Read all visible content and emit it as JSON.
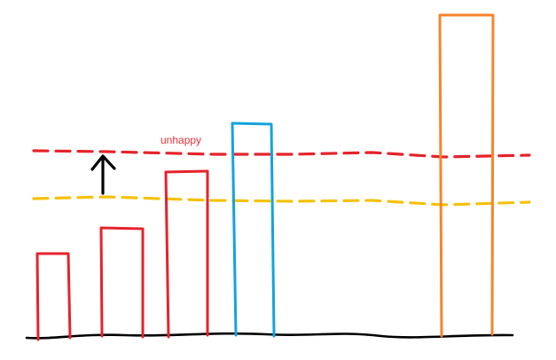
{
  "annotation": {
    "text": "unhappy",
    "color": "#e8303a"
  },
  "colors": {
    "red": "#e5232b",
    "yellow": "#f4c20d",
    "blue": "#14a3dc",
    "orange": "#f5852b",
    "black": "#000000"
  },
  "lines": {
    "red_dashed": "red",
    "yellow_dashed": "yellow"
  },
  "bars": [
    {
      "color": "red"
    },
    {
      "color": "red"
    },
    {
      "color": "red"
    },
    {
      "color": "blue"
    },
    {
      "color": "orange"
    }
  ],
  "arrow": {
    "direction": "up",
    "color": "black"
  }
}
